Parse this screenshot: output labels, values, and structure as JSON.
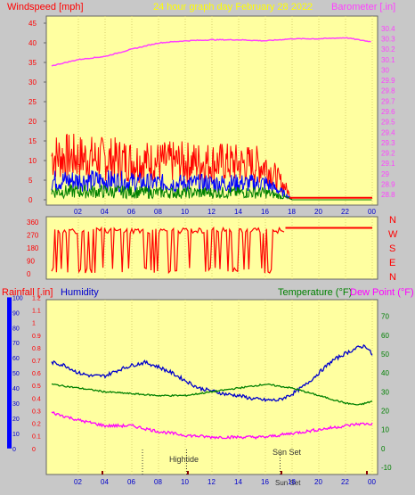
{
  "header": {
    "left_label": "Windspeed [mph]",
    "center_label": "24 hour graph day   February 28 2022",
    "right_label": "Barometer [.in]"
  },
  "compass": [
    "N",
    "W",
    "S",
    "E",
    "N"
  ],
  "bottom_header": {
    "rain_label": "Rainfall [.in]",
    "humidity_label": "Humidity",
    "temp_label": "Temperature (°F)",
    "dew_label": "Dew Point (°F)"
  },
  "annotations": {
    "hightide": "Hightide",
    "sunset": "Sun Set",
    "sunrise_label": "Sun Set"
  },
  "colors": {
    "bg": "#ffffa0",
    "wind_gust": "#ff0000",
    "wind_avg": "#0000ff",
    "wind_low": "#008000",
    "barometer": "#ff40ff",
    "humidity": "#0000cc",
    "temperature": "#008000",
    "dewpoint": "#ff00ff",
    "rain": "#0000ff"
  },
  "chart_data": [
    {
      "type": "line",
      "name_key": "wind-barometer",
      "x_ticks": [
        "02",
        "04",
        "06",
        "08",
        "10",
        "12",
        "14",
        "16",
        "18",
        "20",
        "22",
        "00"
      ],
      "y_left_ticks": [
        0,
        5,
        10,
        15,
        20,
        25,
        30,
        35,
        40,
        45
      ],
      "y_left_lim": [
        0,
        45
      ],
      "y_right_ticks": [
        "28.8",
        "28.9",
        "29",
        "29.1",
        "29.2",
        "29.3",
        "29.4",
        "29.5",
        "29.6",
        "29.7",
        "29.8",
        "29.9",
        "30",
        "30.1",
        "30.2",
        "30.3",
        "30.4"
      ],
      "y_right_lim": [
        28.75,
        30.45
      ],
      "series": [
        {
          "key": "barometer",
          "x": [
            0,
            2,
            4,
            6,
            8,
            10,
            12,
            14,
            16,
            18,
            20,
            22,
            23.5,
            24
          ],
          "values": [
            30.04,
            30.1,
            30.13,
            30.2,
            30.26,
            30.28,
            30.29,
            30.29,
            30.28,
            30.3,
            30.3,
            30.31,
            30.28,
            30.27
          ]
        },
        {
          "key": "wind_gust_envelope",
          "x": [
            0,
            4,
            8,
            12,
            16,
            17.5,
            18,
            24
          ],
          "values": [
            14,
            13,
            12,
            12,
            11,
            4,
            0,
            0
          ]
        },
        {
          "key": "wind_avg_envelope",
          "x": [
            0,
            4,
            8,
            12,
            16,
            17.5,
            18,
            24
          ],
          "values": [
            7,
            7,
            6,
            6,
            6,
            2,
            0,
            0
          ]
        }
      ]
    },
    {
      "type": "line",
      "name_key": "wind-direction",
      "x_ticks": [
        "02",
        "04",
        "06",
        "08",
        "10",
        "12",
        "14",
        "16",
        "18",
        "20",
        "22",
        "00"
      ],
      "y_ticks": [
        0,
        90,
        180,
        270,
        360
      ],
      "y_lim": [
        0,
        360
      ],
      "series": [
        {
          "key": "direction",
          "x": [
            0,
            17.5,
            18,
            24
          ],
          "values": [
            300,
            300,
            320,
            320
          ]
        }
      ]
    },
    {
      "type": "line",
      "name_key": "temp-humidity",
      "x_ticks": [
        "02",
        "04",
        "06",
        "08",
        "10",
        "12",
        "14",
        "16",
        "18",
        "20",
        "22",
        "00"
      ],
      "y_rain_ticks": [
        "0",
        "0.1",
        "0.2",
        "0.3",
        "0.4",
        "0.5",
        "0.6",
        "0.7",
        "0.8",
        "0.9",
        "1",
        "1.1",
        "1.2"
      ],
      "y_hum_ticks": [
        0,
        10,
        20,
        30,
        40,
        50,
        60,
        70,
        80,
        90,
        100
      ],
      "y_temp_ticks": [
        -10,
        0,
        10,
        20,
        30,
        40,
        50,
        60,
        70
      ],
      "y_temp_lim": [
        -10,
        75
      ],
      "series": [
        {
          "key": "humidity",
          "x": [
            0,
            1,
            2,
            3,
            4,
            5,
            6,
            7,
            8,
            9,
            10,
            11,
            12,
            13,
            14,
            15,
            16,
            17,
            18,
            19,
            20,
            21,
            22,
            23,
            23.5,
            24
          ],
          "values": [
            57,
            55,
            50,
            48,
            48,
            52,
            55,
            57,
            54,
            50,
            45,
            40,
            38,
            36,
            35,
            33,
            32,
            32,
            36,
            42,
            50,
            58,
            63,
            67,
            68,
            62
          ]
        },
        {
          "key": "temperature",
          "x": [
            0,
            2,
            4,
            6,
            8,
            10,
            12,
            14,
            16,
            18,
            20,
            22,
            23,
            24
          ],
          "values": [
            34,
            32,
            30,
            29,
            28,
            28,
            30,
            32,
            34,
            32,
            28,
            24,
            23,
            25
          ]
        },
        {
          "key": "dewpoint",
          "x": [
            0,
            1,
            2,
            4,
            6,
            8,
            10,
            12,
            14,
            16,
            18,
            20,
            22,
            23,
            24
          ],
          "values": [
            19,
            17,
            15,
            12,
            12,
            9,
            7,
            6,
            6,
            6,
            8,
            10,
            12,
            13,
            13
          ]
        }
      ]
    }
  ]
}
